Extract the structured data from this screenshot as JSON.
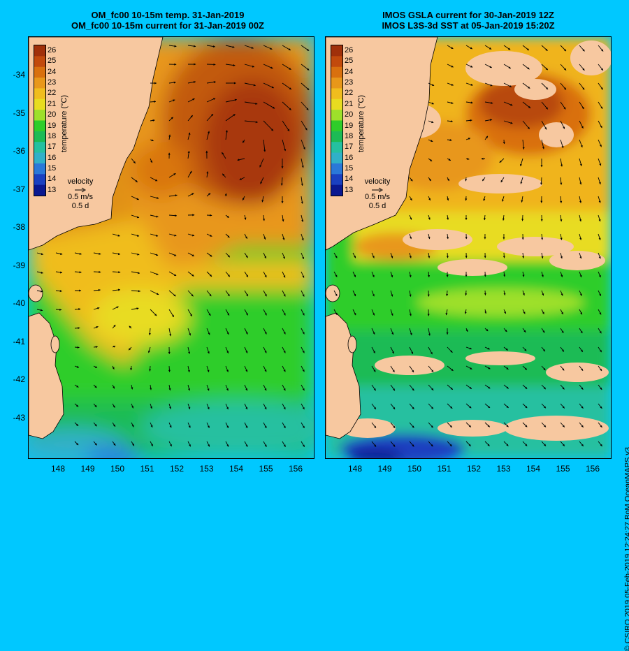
{
  "left": {
    "title_line1": "OM_fc00 10-15m temp. 31-Jan-2019",
    "title_line2": "OM_fc00 10-15m current for 31-Jan-2019 00Z"
  },
  "right": {
    "title_line1": "IMOS GSLA current for 30-Jan-2019 12Z",
    "title_line2": "IMOS L3S-3d SST at 05-Jan-2019 15:20Z"
  },
  "y_ticks": [
    "-34",
    "-35",
    "-36",
    "-37",
    "-38",
    "-39",
    "-40",
    "-41",
    "-42",
    "-43"
  ],
  "x_ticks": [
    "148",
    "149",
    "150",
    "151",
    "152",
    "153",
    "154",
    "155",
    "156"
  ],
  "colorbar": {
    "label": "temperature (°C)",
    "ticks": [
      "26",
      "25",
      "24",
      "23",
      "22",
      "21",
      "20",
      "19",
      "18",
      "17",
      "16",
      "15",
      "14",
      "13"
    ],
    "colors": [
      "#a0300a",
      "#c24a0c",
      "#d9700e",
      "#e8971a",
      "#f0bd1e",
      "#e8dc20",
      "#9ee02a",
      "#2fcd2a",
      "#1dbb55",
      "#25c0a0",
      "#30b0c8",
      "#2a78d8",
      "#1a40c0",
      "#0a1890"
    ]
  },
  "velocity_key": {
    "label": "velocity",
    "speed": "0.5 m/s",
    "time": "0.5 d"
  },
  "credit": "© CSIRO 2019  05-Feb-2019 12:24:27 BoM OceanMAPS v3",
  "colors": {
    "background": "#00c8ff",
    "land": "#f7c8a0",
    "no_data": "#f7c8a0"
  }
}
